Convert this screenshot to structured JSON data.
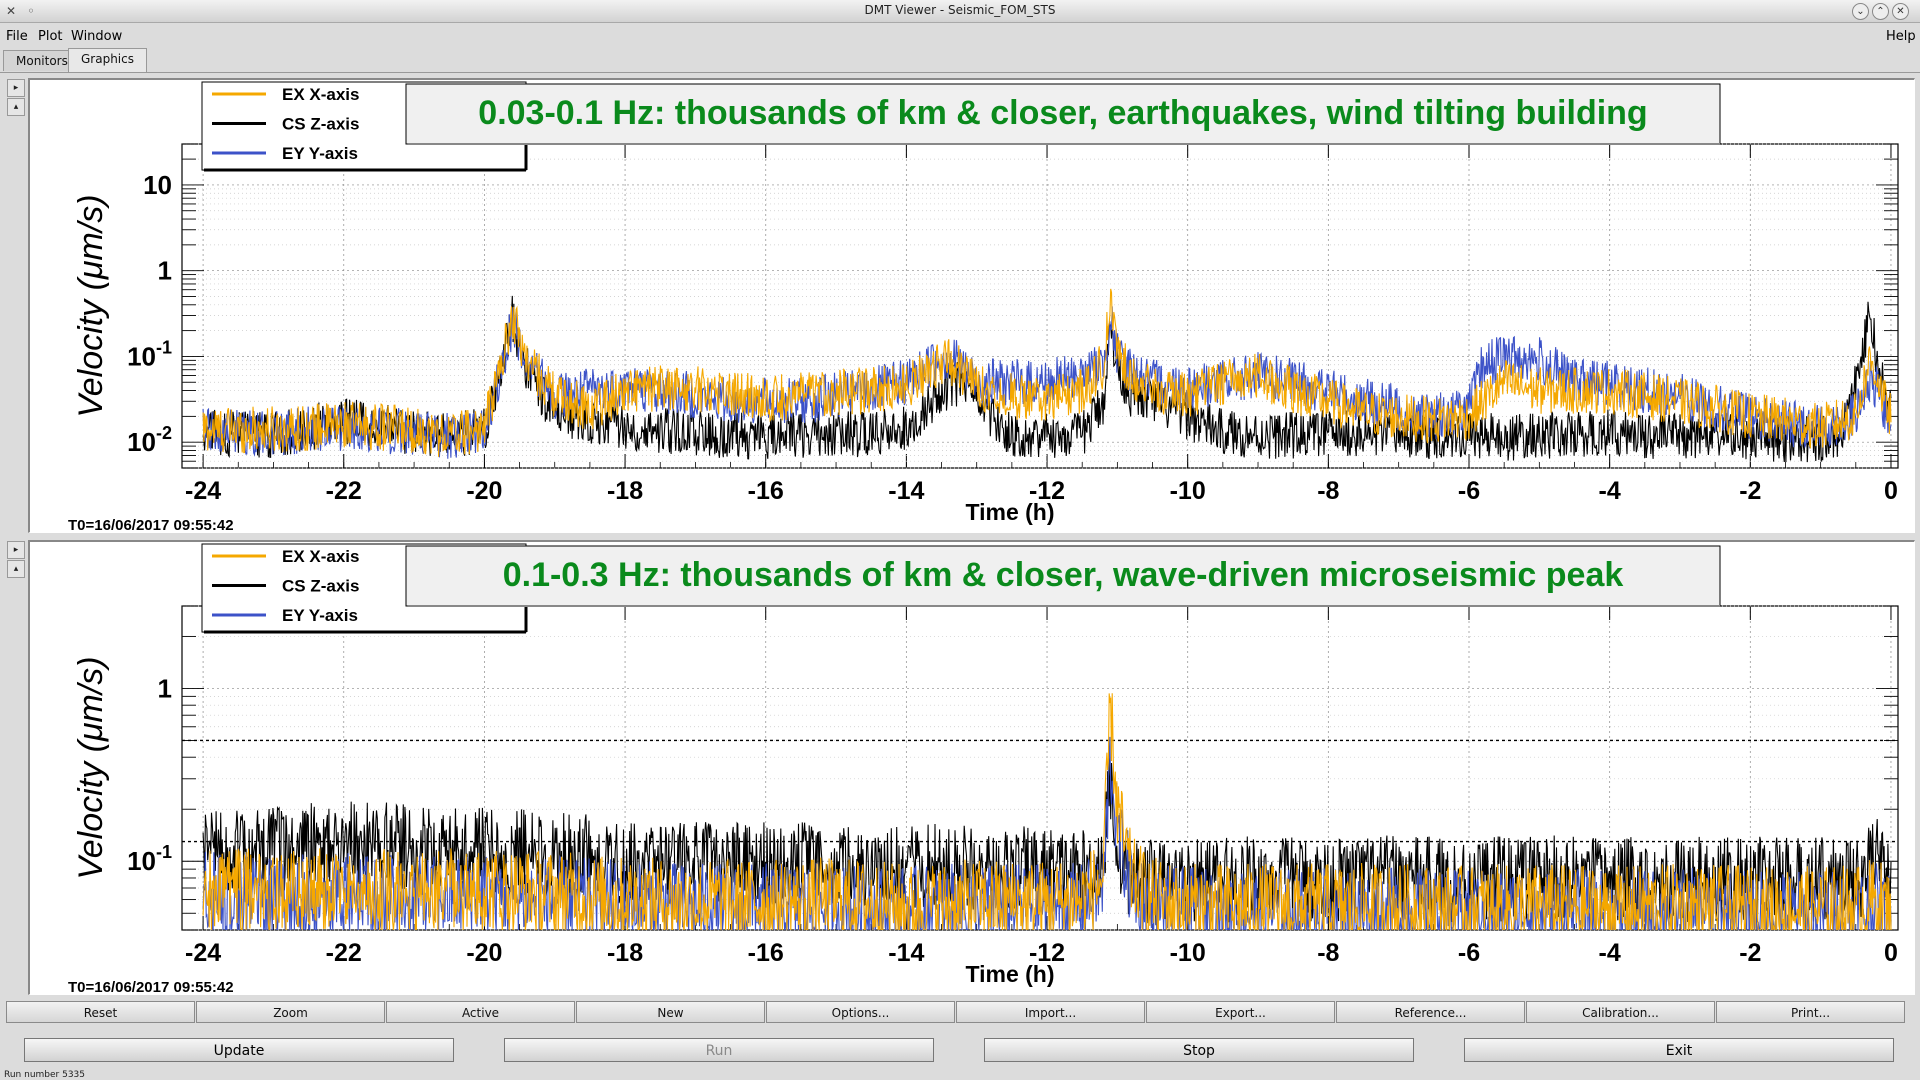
{
  "window": {
    "title": "DMT Viewer - Seismic_FOM_STS"
  },
  "menu": {
    "file": "File",
    "plot": "Plot",
    "window": "Window",
    "help": "Help"
  },
  "tabs": [
    {
      "label": "Monitors"
    },
    {
      "label": "Graphics"
    }
  ],
  "toolbar": [
    {
      "label": "Reset"
    },
    {
      "label": "Zoom"
    },
    {
      "label": "Active"
    },
    {
      "label": "New"
    },
    {
      "label": "Options..."
    },
    {
      "label": "Import..."
    },
    {
      "label": "Export..."
    },
    {
      "label": "Reference..."
    },
    {
      "label": "Calibration..."
    },
    {
      "label": "Print..."
    }
  ],
  "controls": {
    "update": "Update",
    "run": "Run",
    "stop": "Stop",
    "exit": "Exit"
  },
  "status": {
    "text": "Run number 5335"
  },
  "colors": {
    "orange": "#f5a800",
    "black": "#000000",
    "blue": "#3c52c8",
    "title_green": "#0a8a1c"
  },
  "chart_data": [
    {
      "type": "line",
      "title": "0.03-0.1 Hz: thousands of km & closer, earthquakes, wind tilting building",
      "xlabel": "Time (h)",
      "ylabel": "Velocity  (μm/s)",
      "yscale": "log",
      "ylim": [
        0.005,
        30
      ],
      "xlim": [
        -24.3,
        0.1
      ],
      "xticks": [
        "-24",
        "-22",
        "-20",
        "-18",
        "-16",
        "-14",
        "-12",
        "-10",
        "-8",
        "-6",
        "-4",
        "-2",
        "0"
      ],
      "yticks": [
        {
          "base": "10",
          "exp": "-2"
        },
        {
          "base": "10",
          "exp": "-1"
        },
        {
          "base": "1",
          "exp": ""
        },
        {
          "base": "10",
          "exp": ""
        }
      ],
      "annotation": "T0=16/06/2017 09:55:42",
      "legend_placement": "top-left",
      "grid": true,
      "x": [
        -24,
        -23,
        -22,
        -21,
        -20.5,
        -20,
        -19.8,
        -19.6,
        -19.4,
        -19,
        -18.5,
        -18,
        -17.5,
        -17,
        -16.5,
        -16,
        -15.5,
        -15,
        -14.5,
        -14,
        -13.5,
        -13.3,
        -13,
        -12.5,
        -12,
        -11.5,
        -11.2,
        -11.1,
        -11,
        -10.8,
        -10.5,
        -10,
        -9.5,
        -9,
        -8.5,
        -8,
        -7.5,
        -7,
        -6.5,
        -6,
        -5.8,
        -5.5,
        -5,
        -4.5,
        -4,
        -3.5,
        -3,
        -2.5,
        -2,
        -1.5,
        -1,
        -0.7,
        -0.5,
        -0.3,
        -0.2,
        -0.1,
        0
      ],
      "series": [
        {
          "name": "EX X-axis",
          "values": [
            0.014,
            0.014,
            0.016,
            0.014,
            0.012,
            0.015,
            0.06,
            0.3,
            0.09,
            0.035,
            0.025,
            0.04,
            0.042,
            0.042,
            0.038,
            0.032,
            0.035,
            0.038,
            0.04,
            0.045,
            0.09,
            0.08,
            0.045,
            0.035,
            0.03,
            0.04,
            0.08,
            0.4,
            0.12,
            0.06,
            0.04,
            0.035,
            0.05,
            0.06,
            0.04,
            0.03,
            0.022,
            0.02,
            0.018,
            0.02,
            0.03,
            0.05,
            0.04,
            0.04,
            0.04,
            0.035,
            0.03,
            0.025,
            0.02,
            0.018,
            0.015,
            0.018,
            0.02,
            0.09,
            0.06,
            0.03,
            0.02
          ]
        },
        {
          "name": "CS Z-axis",
          "values": [
            0.013,
            0.012,
            0.018,
            0.013,
            0.012,
            0.014,
            0.05,
            0.28,
            0.07,
            0.022,
            0.018,
            0.015,
            0.014,
            0.013,
            0.012,
            0.012,
            0.012,
            0.013,
            0.012,
            0.015,
            0.04,
            0.05,
            0.03,
            0.012,
            0.012,
            0.012,
            0.03,
            0.2,
            0.08,
            0.035,
            0.03,
            0.02,
            0.013,
            0.012,
            0.012,
            0.013,
            0.012,
            0.012,
            0.012,
            0.012,
            0.012,
            0.011,
            0.012,
            0.012,
            0.013,
            0.012,
            0.012,
            0.012,
            0.011,
            0.011,
            0.011,
            0.012,
            0.05,
            0.3,
            0.1,
            0.04,
            0.025
          ]
        },
        {
          "name": "EY Y-axis",
          "values": [
            0.013,
            0.013,
            0.015,
            0.013,
            0.012,
            0.014,
            0.05,
            0.25,
            0.08,
            0.035,
            0.04,
            0.045,
            0.04,
            0.035,
            0.03,
            0.03,
            0.03,
            0.035,
            0.04,
            0.05,
            0.1,
            0.09,
            0.05,
            0.05,
            0.05,
            0.06,
            0.08,
            0.3,
            0.1,
            0.07,
            0.05,
            0.045,
            0.05,
            0.06,
            0.05,
            0.04,
            0.03,
            0.025,
            0.02,
            0.025,
            0.08,
            0.1,
            0.09,
            0.05,
            0.05,
            0.04,
            0.035,
            0.025,
            0.02,
            0.017,
            0.015,
            0.018,
            0.02,
            0.05,
            0.04,
            0.025,
            0.02
          ]
        }
      ]
    },
    {
      "type": "line",
      "title": "0.1-0.3 Hz: thousands of km & closer, wave-driven microseismic peak",
      "xlabel": "Time (h)",
      "ylabel": "Velocity  (μm/s)",
      "yscale": "log",
      "ylim": [
        0.04,
        3
      ],
      "xlim": [
        -24.3,
        0.1
      ],
      "xticks": [
        "-24",
        "-22",
        "-20",
        "-18",
        "-16",
        "-14",
        "-12",
        "-10",
        "-8",
        "-6",
        "-4",
        "-2",
        "0"
      ],
      "yticks": [
        {
          "base": "10",
          "exp": "-1"
        },
        {
          "base": "1",
          "exp": ""
        }
      ],
      "annotation": "T0=16/06/2017 09:55:42",
      "legend_placement": "top-left",
      "grid": true,
      "reference_lines": [
        0.5,
        0.13
      ],
      "x": [
        -24,
        -23,
        -22,
        -21,
        -20,
        -19,
        -18,
        -17,
        -16,
        -15,
        -14,
        -13,
        -12,
        -11.5,
        -11.2,
        -11.1,
        -11,
        -10.8,
        -10.5,
        -10,
        -9,
        -8,
        -7,
        -6,
        -5,
        -4,
        -3,
        -2,
        -1,
        -0.5,
        -0.2,
        0
      ],
      "series": [
        {
          "name": "EX X-axis",
          "values": [
            0.07,
            0.065,
            0.07,
            0.065,
            0.07,
            0.065,
            0.06,
            0.058,
            0.058,
            0.06,
            0.055,
            0.058,
            0.058,
            0.06,
            0.08,
            0.8,
            0.2,
            0.08,
            0.06,
            0.055,
            0.055,
            0.055,
            0.055,
            0.053,
            0.055,
            0.053,
            0.055,
            0.053,
            0.053,
            0.055,
            0.06,
            0.05
          ]
        },
        {
          "name": "CS Z-axis",
          "values": [
            0.11,
            0.115,
            0.13,
            0.12,
            0.115,
            0.11,
            0.1,
            0.1,
            0.095,
            0.095,
            0.095,
            0.09,
            0.09,
            0.085,
            0.1,
            0.3,
            0.12,
            0.08,
            0.075,
            0.075,
            0.08,
            0.078,
            0.08,
            0.078,
            0.08,
            0.078,
            0.078,
            0.078,
            0.078,
            0.08,
            0.1,
            0.07
          ]
        },
        {
          "name": "EY Y-axis",
          "values": [
            0.065,
            0.06,
            0.065,
            0.06,
            0.065,
            0.06,
            0.058,
            0.055,
            0.055,
            0.055,
            0.053,
            0.055,
            0.055,
            0.055,
            0.07,
            0.4,
            0.15,
            0.07,
            0.055,
            0.052,
            0.052,
            0.052,
            0.052,
            0.05,
            0.052,
            0.05,
            0.052,
            0.05,
            0.05,
            0.052,
            0.055,
            0.048
          ]
        }
      ]
    }
  ]
}
